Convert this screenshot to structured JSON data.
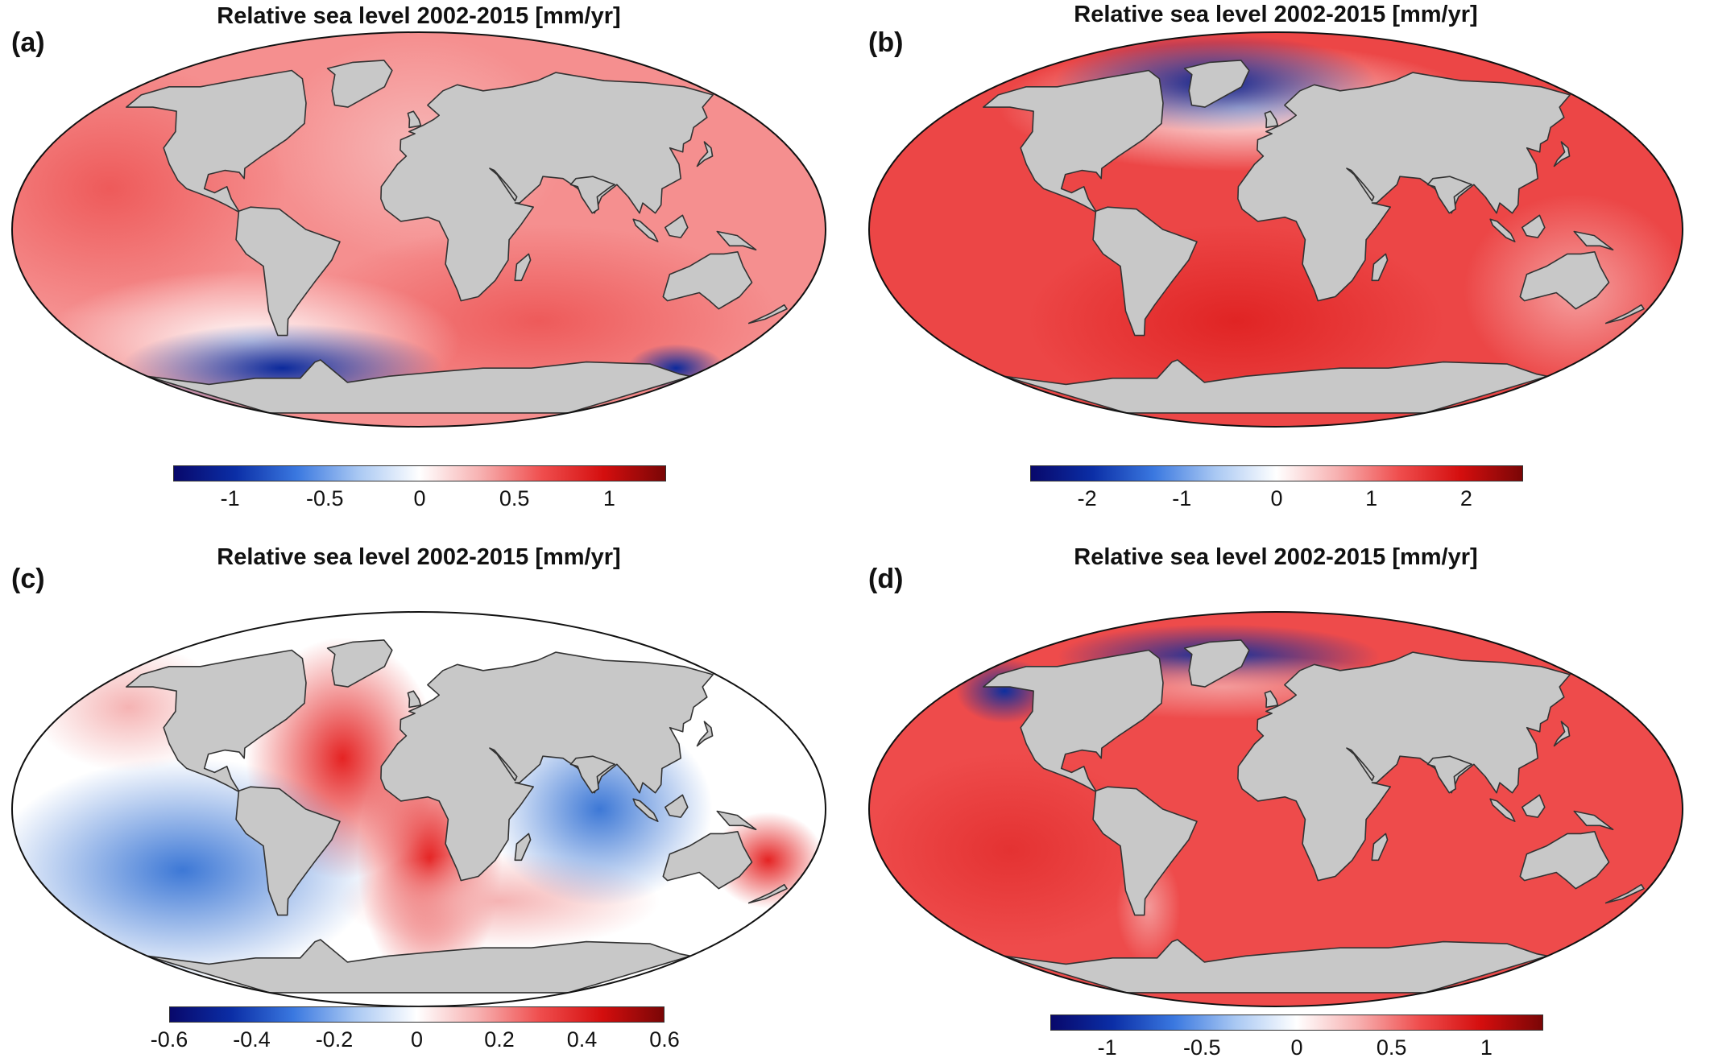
{
  "panels": [
    {
      "id": "a",
      "label": "(a)",
      "title": "Relative sea level 2002-2015 [mm/yr]",
      "colorbar": {
        "range": [
          -1.3,
          1.3
        ],
        "ticks": [
          {
            "value": -1,
            "label": "-1"
          },
          {
            "value": -0.5,
            "label": "-0.5"
          },
          {
            "value": 0,
            "label": "0"
          },
          {
            "value": 0.5,
            "label": "0.5"
          },
          {
            "value": 1,
            "label": "1"
          }
        ]
      },
      "ocean_pattern": "positive over most ocean, strongly negative near West Antarctica / Antarctic Peninsula",
      "ocean_colors": {
        "main": "#f58f8f",
        "strong": "#ee5a5a",
        "negative": "#0c2a9c",
        "light": "#f7b7b7"
      }
    },
    {
      "id": "b",
      "label": "(b)",
      "title": "Relative sea level 2002-2015 [mm/yr]",
      "colorbar": {
        "range": [
          -2.6,
          2.6
        ],
        "ticks": [
          {
            "value": -2,
            "label": "-2"
          },
          {
            "value": -1,
            "label": "-1"
          },
          {
            "value": 0,
            "label": "0"
          },
          {
            "value": 1,
            "label": "1"
          },
          {
            "value": 2,
            "label": "2"
          }
        ]
      },
      "ocean_pattern": "positive globally, strongly negative around Greenland",
      "ocean_colors": {
        "main": "#ec4646",
        "strong": "#e02424",
        "negative": "#0a1f8c",
        "light": "#f5a0a0"
      }
    },
    {
      "id": "c",
      "label": "(c)",
      "title": "Relative sea level 2002-2015 [mm/yr]",
      "colorbar": {
        "range": [
          -0.6,
          0.6
        ],
        "ticks": [
          {
            "value": -0.6,
            "label": "-0.6"
          },
          {
            "value": -0.4,
            "label": "-0.4"
          },
          {
            "value": -0.2,
            "label": "-0.2"
          },
          {
            "value": 0,
            "label": "0"
          },
          {
            "value": 0.2,
            "label": "0.2"
          },
          {
            "value": 0.4,
            "label": "0.4"
          },
          {
            "value": 0.6,
            "label": "0.6"
          }
        ]
      },
      "ocean_pattern": "mixed: positive Atlantic / SW Pacific, negative SE Pacific / Indian Ocean",
      "ocean_colors": {
        "main": "#ffffff",
        "strong": "#e52323",
        "negative": "#3d78d6",
        "light": "#f5b3b3"
      }
    },
    {
      "id": "d",
      "label": "(d)",
      "title": "Relative sea level 2002-2015 [mm/yr]",
      "colorbar": {
        "range": [
          -1.3,
          1.3
        ],
        "ticks": [
          {
            "value": -1,
            "label": "-1"
          },
          {
            "value": -0.5,
            "label": "-0.5"
          },
          {
            "value": 0,
            "label": "0"
          },
          {
            "value": 0.5,
            "label": "0.5"
          },
          {
            "value": 1,
            "label": "1"
          }
        ]
      },
      "ocean_pattern": "positive globally, negative near Alaska, Greenland and southern Patagonia",
      "ocean_colors": {
        "main": "#ee4b4b",
        "strong": "#e43232",
        "negative": "#0e2f9e",
        "light": "#f39a9a"
      }
    }
  ],
  "colors": {
    "land": "#c8c8c8",
    "coast": "#333333",
    "colormap": [
      "#08086b",
      "#0b2ea6",
      "#3a78e0",
      "#a9c8f3",
      "#ffffff",
      "#f7b0b0",
      "#ef4d4d",
      "#d40e0e",
      "#7a0606"
    ]
  }
}
